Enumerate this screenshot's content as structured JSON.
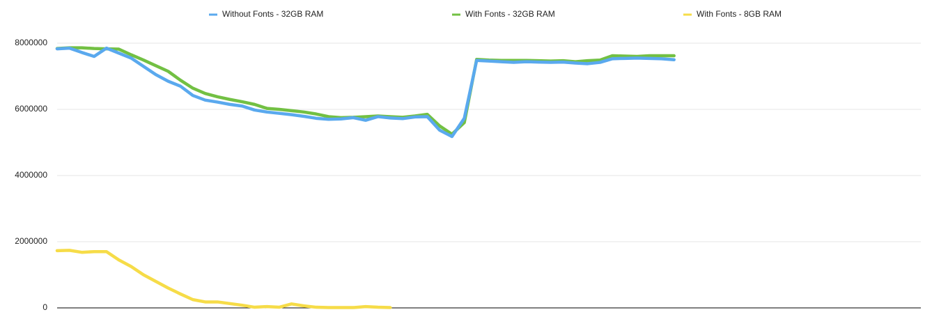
{
  "chart_data": {
    "type": "line",
    "categories": [
      null,
      null,
      null,
      null,
      null,
      null,
      null,
      null,
      null,
      null,
      null,
      null,
      null,
      null,
      null,
      null,
      null,
      null,
      null,
      null,
      null,
      null,
      null,
      null,
      null,
      null,
      null,
      null,
      null,
      null,
      null,
      null,
      null,
      null,
      null,
      null,
      null,
      null,
      null,
      null,
      null,
      null,
      null,
      null,
      null,
      null,
      null,
      null,
      null,
      null,
      null,
      null,
      null,
      null,
      null,
      null,
      null,
      null,
      null,
      null,
      null,
      null,
      null,
      null,
      null,
      null,
      null,
      null,
      null,
      null,
      null
    ],
    "series": [
      {
        "name": "Without Fonts - 32GB RAM",
        "color": "#5aa9ee",
        "values": [
          7830000,
          7850000,
          7720000,
          7600000,
          7850000,
          7700000,
          7550000,
          7300000,
          7050000,
          6850000,
          6700000,
          6420000,
          6280000,
          6220000,
          6150000,
          6100000,
          5980000,
          5920000,
          5880000,
          5840000,
          5790000,
          5730000,
          5700000,
          5710000,
          5750000,
          5670000,
          5780000,
          5740000,
          5720000,
          5770000,
          5780000,
          5370000,
          5180000,
          5730000,
          7480000,
          7460000,
          7440000,
          7420000,
          7440000,
          7430000,
          7420000,
          7430000,
          7400000,
          7380000,
          7420000,
          7530000,
          7540000,
          7550000,
          7540000,
          7530000,
          7500000,
          null,
          null,
          null,
          null,
          null,
          null,
          null,
          null,
          null,
          null,
          null,
          null,
          null,
          null,
          null,
          null,
          null,
          null,
          null,
          null
        ]
      },
      {
        "name": "With Fonts - 32GB RAM",
        "color": "#72c043",
        "values": [
          7840000,
          7860000,
          7860000,
          7840000,
          7830000,
          7820000,
          7650000,
          7490000,
          7320000,
          7150000,
          6880000,
          6640000,
          6480000,
          6380000,
          6300000,
          6230000,
          6150000,
          6030000,
          6000000,
          5960000,
          5920000,
          5860000,
          5780000,
          5750000,
          5760000,
          5780000,
          5800000,
          5780000,
          5760000,
          5800000,
          5850000,
          5500000,
          5250000,
          5600000,
          7510000,
          7490000,
          7480000,
          7480000,
          7480000,
          7470000,
          7460000,
          7470000,
          7440000,
          7470000,
          7490000,
          7620000,
          7610000,
          7600000,
          7620000,
          7620000,
          7620000,
          null,
          null,
          null,
          null,
          null,
          null,
          null,
          null,
          null,
          null,
          null,
          null,
          null,
          null,
          null,
          null,
          null,
          null,
          null,
          null
        ]
      },
      {
        "name": "With Fonts - 8GB RAM",
        "color": "#f6dc48",
        "values": [
          1730000,
          1740000,
          1680000,
          1700000,
          1700000,
          1450000,
          1250000,
          1000000,
          800000,
          600000,
          420000,
          250000,
          180000,
          180000,
          130000,
          80000,
          20000,
          40000,
          20000,
          120000,
          60000,
          20000,
          10000,
          10000,
          10000,
          40000,
          20000,
          10000,
          null,
          null,
          null,
          null,
          null,
          null,
          null,
          null,
          null,
          null,
          null,
          null,
          null,
          null,
          null,
          null,
          null,
          null,
          null,
          null,
          null,
          null,
          null,
          null,
          null,
          null,
          null,
          null,
          null,
          null,
          null,
          null,
          null,
          null,
          null,
          null,
          null,
          null,
          null,
          null,
          null,
          null,
          null
        ]
      }
    ],
    "ylim": [
      0,
      8000000
    ],
    "yticks": [
      0,
      2000000,
      4000000,
      6000000,
      8000000
    ],
    "grid": true
  }
}
